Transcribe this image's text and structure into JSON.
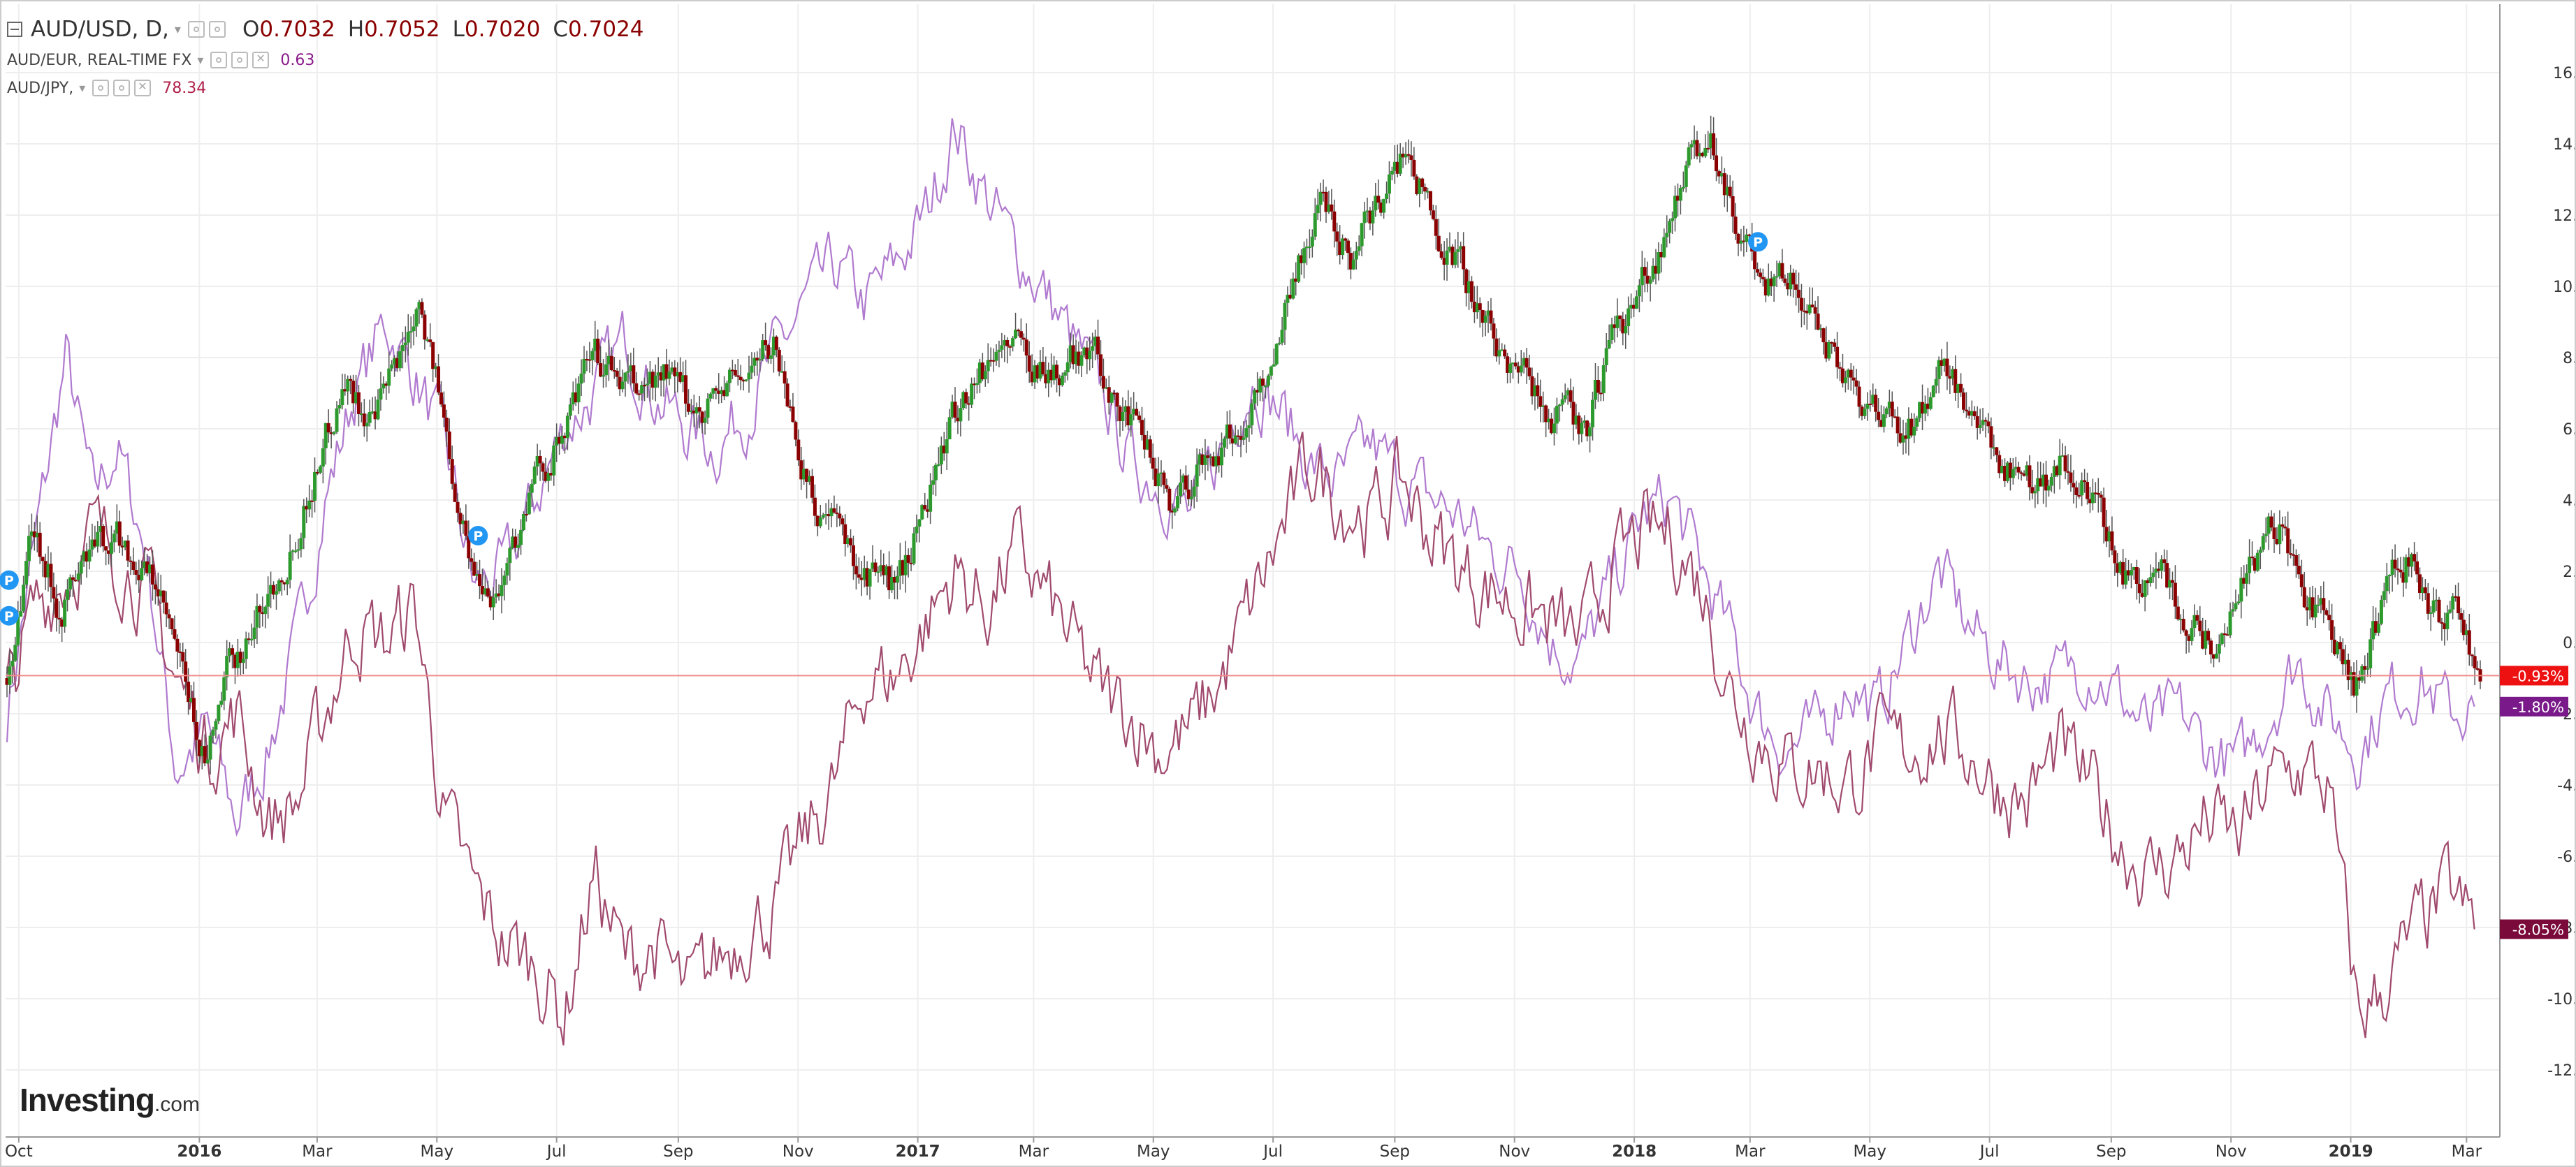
{
  "legend": {
    "main": {
      "symbol_label": "AUD/USD, D,",
      "open_key": "O",
      "open_val": "0.7032",
      "high_key": "H",
      "high_val": "0.7052",
      "low_key": "L",
      "low_val": "0.7020",
      "close_key": "C",
      "close_val": "0.7024"
    },
    "series2": {
      "label": "AUD/EUR, REAL-TIME FX",
      "value": "0.63",
      "color": "#8a1a8a"
    },
    "series3": {
      "label": "AUD/JPY,",
      "value": "78.34",
      "color": "#b0204a"
    }
  },
  "logo": {
    "brand": "Investing",
    "suffix": ".com"
  },
  "icons": [
    "collapse-icon",
    "chevron-down-icon",
    "settings-icon",
    "close-icon",
    "p-marker-icon"
  ],
  "colors": {
    "up_candle": "#2d9a2d",
    "down_candle": "#8b0000",
    "wick": "#555555",
    "audeur_line": "#b07acf",
    "audjpy_line": "#a04a6e",
    "grid": "#eeeeee",
    "axis": "#999999",
    "label_close": "#ee1111",
    "label_audeur": "#7a1a8a",
    "label_audjpy": "#7a0a3a",
    "marker": "#2196f3"
  },
  "chart_data": {
    "type": "line",
    "ylim": [
      -13,
      17
    ],
    "x_range": [
      "2015-09-25",
      "2019-03-08"
    ],
    "y_ticks": [
      -12,
      -10,
      -8,
      -6,
      -4,
      -2,
      0,
      2,
      4,
      6,
      8,
      10,
      12,
      14,
      16
    ],
    "y_tick_labels": [
      "-12.00%",
      "-10.00%",
      "-8.00%",
      "-6.00%",
      "-4.00%",
      "-2.00%",
      "0.00%",
      "2.00%",
      "4.00%",
      "6.00%",
      "8.00%",
      "10.00%",
      "12.00%",
      "14.00%",
      "16.00%"
    ],
    "x_ticks": [
      {
        "label": "Oct",
        "date": "2015-10-01",
        "bold": false
      },
      {
        "label": "2016",
        "date": "2016-01-01",
        "bold": true
      },
      {
        "label": "Mar",
        "date": "2016-03-01",
        "bold": false
      },
      {
        "label": "May",
        "date": "2016-05-01",
        "bold": false
      },
      {
        "label": "Jul",
        "date": "2016-07-01",
        "bold": false
      },
      {
        "label": "Sep",
        "date": "2016-09-01",
        "bold": false
      },
      {
        "label": "Nov",
        "date": "2016-11-01",
        "bold": false
      },
      {
        "label": "2017",
        "date": "2017-01-01",
        "bold": true
      },
      {
        "label": "Mar",
        "date": "2017-03-01",
        "bold": false
      },
      {
        "label": "May",
        "date": "2017-05-01",
        "bold": false
      },
      {
        "label": "Jul",
        "date": "2017-07-01",
        "bold": false
      },
      {
        "label": "Sep",
        "date": "2017-09-01",
        "bold": false
      },
      {
        "label": "Nov",
        "date": "2017-11-01",
        "bold": false
      },
      {
        "label": "2018",
        "date": "2018-01-01",
        "bold": true
      },
      {
        "label": "Mar",
        "date": "2018-03-01",
        "bold": false
      },
      {
        "label": "May",
        "date": "2018-05-01",
        "bold": false
      },
      {
        "label": "Jul",
        "date": "2018-07-01",
        "bold": false
      },
      {
        "label": "Sep",
        "date": "2018-09-01",
        "bold": false
      },
      {
        "label": "Nov",
        "date": "2018-11-01",
        "bold": false
      },
      {
        "label": "2019",
        "date": "2019-01-01",
        "bold": true
      },
      {
        "label": "Mar",
        "date": "2019-03-01",
        "bold": false
      }
    ],
    "series": [
      {
        "name": "AUD/USD",
        "kind": "candles",
        "dates": [
          "2015-09-25",
          "2015-10-08",
          "2015-10-22",
          "2015-11-06",
          "2015-11-20",
          "2015-12-10",
          "2016-01-05",
          "2016-01-15",
          "2016-01-29",
          "2016-02-15",
          "2016-03-01",
          "2016-03-15",
          "2016-03-30",
          "2016-04-15",
          "2016-04-22",
          "2016-05-05",
          "2016-05-20",
          "2016-06-01",
          "2016-06-20",
          "2016-07-05",
          "2016-07-20",
          "2016-08-10",
          "2016-08-25",
          "2016-09-08",
          "2016-09-20",
          "2016-10-05",
          "2016-10-20",
          "2016-11-08",
          "2016-11-15",
          "2016-12-05",
          "2016-12-22",
          "2017-01-10",
          "2017-01-25",
          "2017-02-15",
          "2017-03-01",
          "2017-03-15",
          "2017-03-30",
          "2017-04-15",
          "2017-05-01",
          "2017-05-10",
          "2017-05-25",
          "2017-06-15",
          "2017-07-01",
          "2017-07-12",
          "2017-07-27",
          "2017-08-10",
          "2017-08-25",
          "2017-09-08",
          "2017-09-20",
          "2017-10-05",
          "2017-10-20",
          "2017-11-05",
          "2017-11-20",
          "2017-12-08",
          "2017-12-22",
          "2018-01-10",
          "2018-01-26",
          "2018-02-08",
          "2018-02-25",
          "2018-03-08",
          "2018-03-20",
          "2018-04-02",
          "2018-04-20",
          "2018-05-09",
          "2018-05-25",
          "2018-06-08",
          "2018-06-25",
          "2018-07-10",
          "2018-07-25",
          "2018-08-10",
          "2018-08-25",
          "2018-09-11",
          "2018-09-25",
          "2018-10-10",
          "2018-10-25",
          "2018-11-10",
          "2018-11-25",
          "2018-12-05",
          "2018-12-20",
          "2019-01-03",
          "2019-01-10",
          "2019-01-20",
          "2019-02-01",
          "2019-02-15",
          "2019-02-25",
          "2019-03-08"
        ],
        "values": [
          -1.0,
          3.5,
          1.0,
          2.5,
          3.0,
          1.5,
          -3.5,
          -1.0,
          0.5,
          2.5,
          5.0,
          7.5,
          6.0,
          8.5,
          10.0,
          6.0,
          2.0,
          1.5,
          4.5,
          6.0,
          8.0,
          7.0,
          7.5,
          6.5,
          7.0,
          7.5,
          8.5,
          4.0,
          3.5,
          2.0,
          1.5,
          5.0,
          7.0,
          8.5,
          8.0,
          7.5,
          8.5,
          6.5,
          5.0,
          4.0,
          5.0,
          6.0,
          8.0,
          10.5,
          12.5,
          11.0,
          12.5,
          14.0,
          12.0,
          10.5,
          8.5,
          7.5,
          6.5,
          6.0,
          8.5,
          10.5,
          13.0,
          14.5,
          11.5,
          9.5,
          10.5,
          9.0,
          7.5,
          6.0,
          6.0,
          8.0,
          5.5,
          5.0,
          4.5,
          5.0,
          3.5,
          1.5,
          2.5,
          0.5,
          0.0,
          2.0,
          3.5,
          1.5,
          0.5,
          -1.5,
          0.0,
          1.5,
          2.5,
          0.5,
          1.0,
          -0.93
        ]
      },
      {
        "name": "AUD/EUR, REAL-TIME FX",
        "kind": "line",
        "dates": [
          "2015-09-25",
          "2015-10-10",
          "2015-10-25",
          "2015-11-08",
          "2015-11-20",
          "2015-12-05",
          "2015-12-20",
          "2016-01-05",
          "2016-01-20",
          "2016-02-05",
          "2016-02-20",
          "2016-03-05",
          "2016-03-20",
          "2016-04-05",
          "2016-04-20",
          "2016-05-05",
          "2016-05-20",
          "2016-06-05",
          "2016-06-20",
          "2016-07-05",
          "2016-07-20",
          "2016-08-05",
          "2016-08-20",
          "2016-09-05",
          "2016-09-20",
          "2016-10-05",
          "2016-10-20",
          "2016-11-05",
          "2016-11-20",
          "2016-12-05",
          "2016-12-20",
          "2017-01-05",
          "2017-01-20",
          "2017-02-05",
          "2017-02-20",
          "2017-03-05",
          "2017-03-20",
          "2017-04-05",
          "2017-04-20",
          "2017-05-05",
          "2017-05-20",
          "2017-06-05",
          "2017-06-20",
          "2017-07-05",
          "2017-07-20",
          "2017-08-05",
          "2017-08-20",
          "2017-09-05",
          "2017-09-20",
          "2017-10-05",
          "2017-10-20",
          "2017-11-05",
          "2017-11-20",
          "2017-12-05",
          "2017-12-20",
          "2018-01-05",
          "2018-01-20",
          "2018-02-05",
          "2018-02-20",
          "2018-03-05",
          "2018-03-20",
          "2018-04-05",
          "2018-04-20",
          "2018-05-05",
          "2018-05-20",
          "2018-06-05",
          "2018-06-20",
          "2018-07-05",
          "2018-07-20",
          "2018-08-05",
          "2018-08-20",
          "2018-09-05",
          "2018-09-20",
          "2018-10-05",
          "2018-10-20",
          "2018-11-05",
          "2018-11-20",
          "2018-12-05",
          "2018-12-20",
          "2019-01-05",
          "2019-01-20",
          "2019-02-05",
          "2019-02-20",
          "2019-03-05"
        ],
        "values": [
          -2.0,
          3.0,
          8.0,
          4.0,
          5.5,
          2.5,
          -3.5,
          -2.5,
          -5.0,
          -3.0,
          0.0,
          4.0,
          7.0,
          9.0,
          7.5,
          5.5,
          1.5,
          2.0,
          4.0,
          6.0,
          7.0,
          8.5,
          7.0,
          6.0,
          5.5,
          6.5,
          8.0,
          9.5,
          10.5,
          9.5,
          10.5,
          12.0,
          14.5,
          12.5,
          11.0,
          10.0,
          8.5,
          7.0,
          5.0,
          4.5,
          3.5,
          5.5,
          7.5,
          6.5,
          5.0,
          4.5,
          5.5,
          4.5,
          4.0,
          3.5,
          2.5,
          2.0,
          0.0,
          -0.5,
          1.5,
          3.5,
          4.0,
          2.0,
          0.0,
          -2.0,
          -3.0,
          -2.5,
          -1.0,
          -2.0,
          0.0,
          2.0,
          0.5,
          -0.5,
          -1.0,
          -1.0,
          -0.5,
          -1.5,
          -2.5,
          -2.0,
          -3.0,
          -3.5,
          -2.0,
          -0.5,
          -2.0,
          -3.0,
          -1.5,
          -1.0,
          -2.0,
          -1.8
        ]
      },
      {
        "name": "AUD/JPY",
        "kind": "line",
        "dates": [
          "2015-09-25",
          "2015-10-10",
          "2015-10-25",
          "2015-11-08",
          "2015-11-20",
          "2015-12-05",
          "2015-12-20",
          "2016-01-05",
          "2016-01-20",
          "2016-02-05",
          "2016-02-20",
          "2016-03-05",
          "2016-03-20",
          "2016-04-05",
          "2016-04-20",
          "2016-05-05",
          "2016-05-20",
          "2016-06-05",
          "2016-06-20",
          "2016-07-05",
          "2016-07-20",
          "2016-08-05",
          "2016-08-20",
          "2016-09-05",
          "2016-09-20",
          "2016-10-05",
          "2016-10-20",
          "2016-11-05",
          "2016-11-20",
          "2016-12-05",
          "2016-12-20",
          "2017-01-05",
          "2017-01-20",
          "2017-02-05",
          "2017-02-20",
          "2017-03-05",
          "2017-03-20",
          "2017-04-05",
          "2017-04-20",
          "2017-05-05",
          "2017-05-20",
          "2017-06-05",
          "2017-06-20",
          "2017-07-05",
          "2017-07-20",
          "2017-08-05",
          "2017-08-20",
          "2017-09-05",
          "2017-09-20",
          "2017-10-05",
          "2017-10-20",
          "2017-11-05",
          "2017-11-20",
          "2017-12-05",
          "2017-12-20",
          "2018-01-05",
          "2018-01-20",
          "2018-02-05",
          "2018-02-20",
          "2018-03-05",
          "2018-03-20",
          "2018-04-05",
          "2018-04-20",
          "2018-05-05",
          "2018-05-20",
          "2018-06-05",
          "2018-06-20",
          "2018-07-05",
          "2018-07-20",
          "2018-08-05",
          "2018-08-20",
          "2018-09-05",
          "2018-09-20",
          "2018-10-05",
          "2018-10-20",
          "2018-11-05",
          "2018-11-20",
          "2018-12-05",
          "2018-12-20",
          "2019-01-05",
          "2019-01-20",
          "2019-02-05",
          "2019-02-20",
          "2019-03-05"
        ],
        "values": [
          -1.5,
          1.0,
          2.0,
          3.0,
          2.5,
          1.5,
          -1.0,
          -3.0,
          -2.0,
          -5.0,
          -4.5,
          -2.0,
          0.5,
          0.0,
          1.0,
          -5.0,
          -7.0,
          -8.5,
          -9.0,
          -10.5,
          -6.5,
          -9.0,
          -8.5,
          -10.0,
          -9.0,
          -8.0,
          -7.5,
          -5.5,
          -4.0,
          -1.0,
          -1.0,
          0.5,
          2.0,
          1.0,
          2.5,
          1.5,
          0.0,
          -1.5,
          -2.0,
          -3.0,
          -2.5,
          -1.0,
          1.0,
          3.0,
          5.0,
          4.0,
          3.5,
          4.5,
          3.0,
          2.0,
          1.5,
          1.0,
          0.5,
          0.0,
          2.0,
          3.0,
          3.0,
          1.5,
          -1.5,
          -2.5,
          -3.5,
          -3.5,
          -4.0,
          -3.0,
          -3.0,
          -2.5,
          -3.0,
          -4.0,
          -4.5,
          -3.0,
          -4.0,
          -5.5,
          -6.5,
          -6.0,
          -5.0,
          -5.5,
          -4.0,
          -3.5,
          -4.0,
          -10.5,
          -9.5,
          -8.0,
          -7.0,
          -8.05
        ]
      }
    ],
    "last_value_labels": [
      {
        "series": "AUD/USD",
        "value": -0.93,
        "text": "-0.93%",
        "color_key": "label_close"
      },
      {
        "series": "AUD/EUR, REAL-TIME FX",
        "value": -1.8,
        "text": "-1.80%",
        "color_key": "label_audeur"
      },
      {
        "series": "AUD/JPY",
        "value": -8.05,
        "text": "-8.05%",
        "color_key": "label_audjpy"
      }
    ],
    "reference_line": {
      "value": -0.93
    },
    "markers": [
      {
        "label": "P",
        "date": "2015-09-26",
        "value": 1.75
      },
      {
        "label": "P",
        "date": "2015-09-26",
        "value": 0.75
      },
      {
        "label": "P",
        "date": "2016-05-22",
        "value": 3.0
      },
      {
        "label": "P",
        "date": "2018-03-05",
        "value": 11.25
      }
    ]
  }
}
